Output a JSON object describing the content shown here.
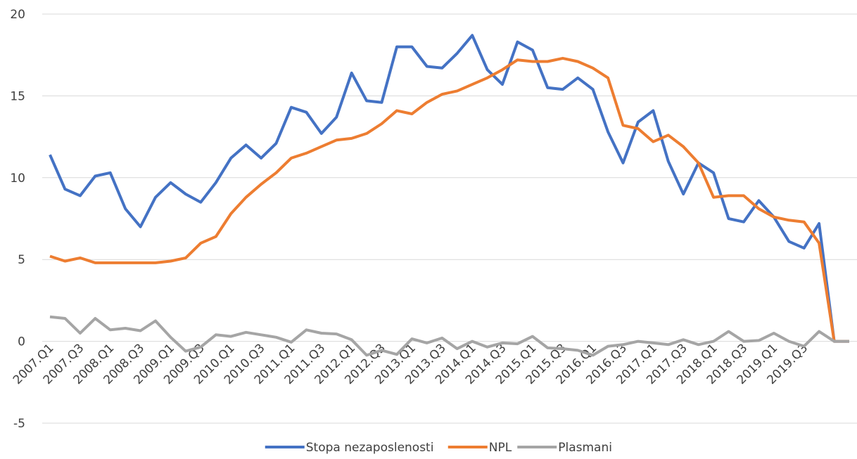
{
  "chart_data": {
    "type": "line",
    "categories": [
      "2007.Q1",
      null,
      "2007.Q3",
      null,
      "2008.Q1",
      null,
      "2008.Q3",
      null,
      "2009.Q1",
      null,
      "2009.Q3",
      null,
      "2010.Q1",
      null,
      "2010.Q3",
      null,
      "2011.Q1",
      null,
      "2011.Q3",
      null,
      "2012.Q1",
      null,
      "2012.Q3",
      null,
      "2013.Q1",
      null,
      "2013.Q3",
      null,
      "2014.Q1",
      null,
      "2014.Q3",
      null,
      "2015.Q1",
      null,
      "2015.Q3",
      null,
      "2016.Q1",
      null,
      "2016.Q3",
      null,
      "2017.Q1",
      null,
      "2017.Q3",
      null,
      "2018.Q1",
      null,
      "2018.Q3",
      null,
      "2019.Q1",
      null,
      "2019.Q3",
      null,
      null,
      null
    ],
    "series": [
      {
        "name": "Stopa nezaposlenosti",
        "color": "#4472c4",
        "values": [
          11.4,
          9.3,
          8.9,
          10.1,
          10.3,
          8.1,
          7.0,
          8.8,
          9.7,
          9.0,
          8.5,
          9.7,
          11.2,
          12.0,
          11.2,
          12.1,
          14.3,
          14.0,
          12.7,
          13.7,
          16.4,
          14.7,
          14.6,
          18.0,
          18.0,
          16.8,
          16.7,
          17.6,
          18.7,
          16.6,
          15.7,
          18.3,
          17.8,
          15.5,
          15.4,
          16.1,
          15.4,
          12.8,
          10.9,
          13.4,
          14.1,
          11.0,
          9.0,
          10.9,
          10.3,
          7.5,
          7.3,
          8.6,
          7.6,
          6.1,
          5.7,
          7.2,
          0,
          0
        ]
      },
      {
        "name": "NPL",
        "color": "#ed7d31",
        "values": [
          5.2,
          4.9,
          5.1,
          4.8,
          4.8,
          4.8,
          4.8,
          4.8,
          4.9,
          5.1,
          6.0,
          6.4,
          7.8,
          8.8,
          9.6,
          10.3,
          11.2,
          11.5,
          11.9,
          12.3,
          12.4,
          12.7,
          13.3,
          14.1,
          13.9,
          14.6,
          15.1,
          15.3,
          15.7,
          16.1,
          16.6,
          17.2,
          17.1,
          17.1,
          17.3,
          17.1,
          16.7,
          16.1,
          13.2,
          13.0,
          12.2,
          12.6,
          11.9,
          10.9,
          8.8,
          8.9,
          8.9,
          8.1,
          7.6,
          7.4,
          7.3,
          6.0,
          0,
          0
        ]
      },
      {
        "name": "Plasmani",
        "color": "#a5a5a5",
        "values": [
          1.5,
          1.4,
          0.5,
          1.4,
          0.7,
          0.8,
          0.65,
          1.25,
          0.25,
          -0.6,
          -0.35,
          0.4,
          0.3,
          0.55,
          0.4,
          0.25,
          -0.05,
          0.7,
          0.5,
          0.45,
          0.1,
          -0.85,
          -0.55,
          -0.8,
          0.15,
          -0.1,
          0.2,
          -0.45,
          0.0,
          -0.35,
          -0.1,
          -0.15,
          0.3,
          -0.4,
          -0.45,
          -0.55,
          -0.85,
          -0.3,
          -0.2,
          0,
          -0.1,
          -0.2,
          0.1,
          -0.2,
          0,
          0.6,
          0,
          0.05,
          0.5,
          0,
          -0.3,
          0.6,
          0,
          0
        ]
      }
    ],
    "ylim": [
      -5,
      20
    ],
    "yticks": [
      -5,
      0,
      5,
      10,
      15,
      20
    ],
    "grid": true,
    "legend": "bottom"
  }
}
